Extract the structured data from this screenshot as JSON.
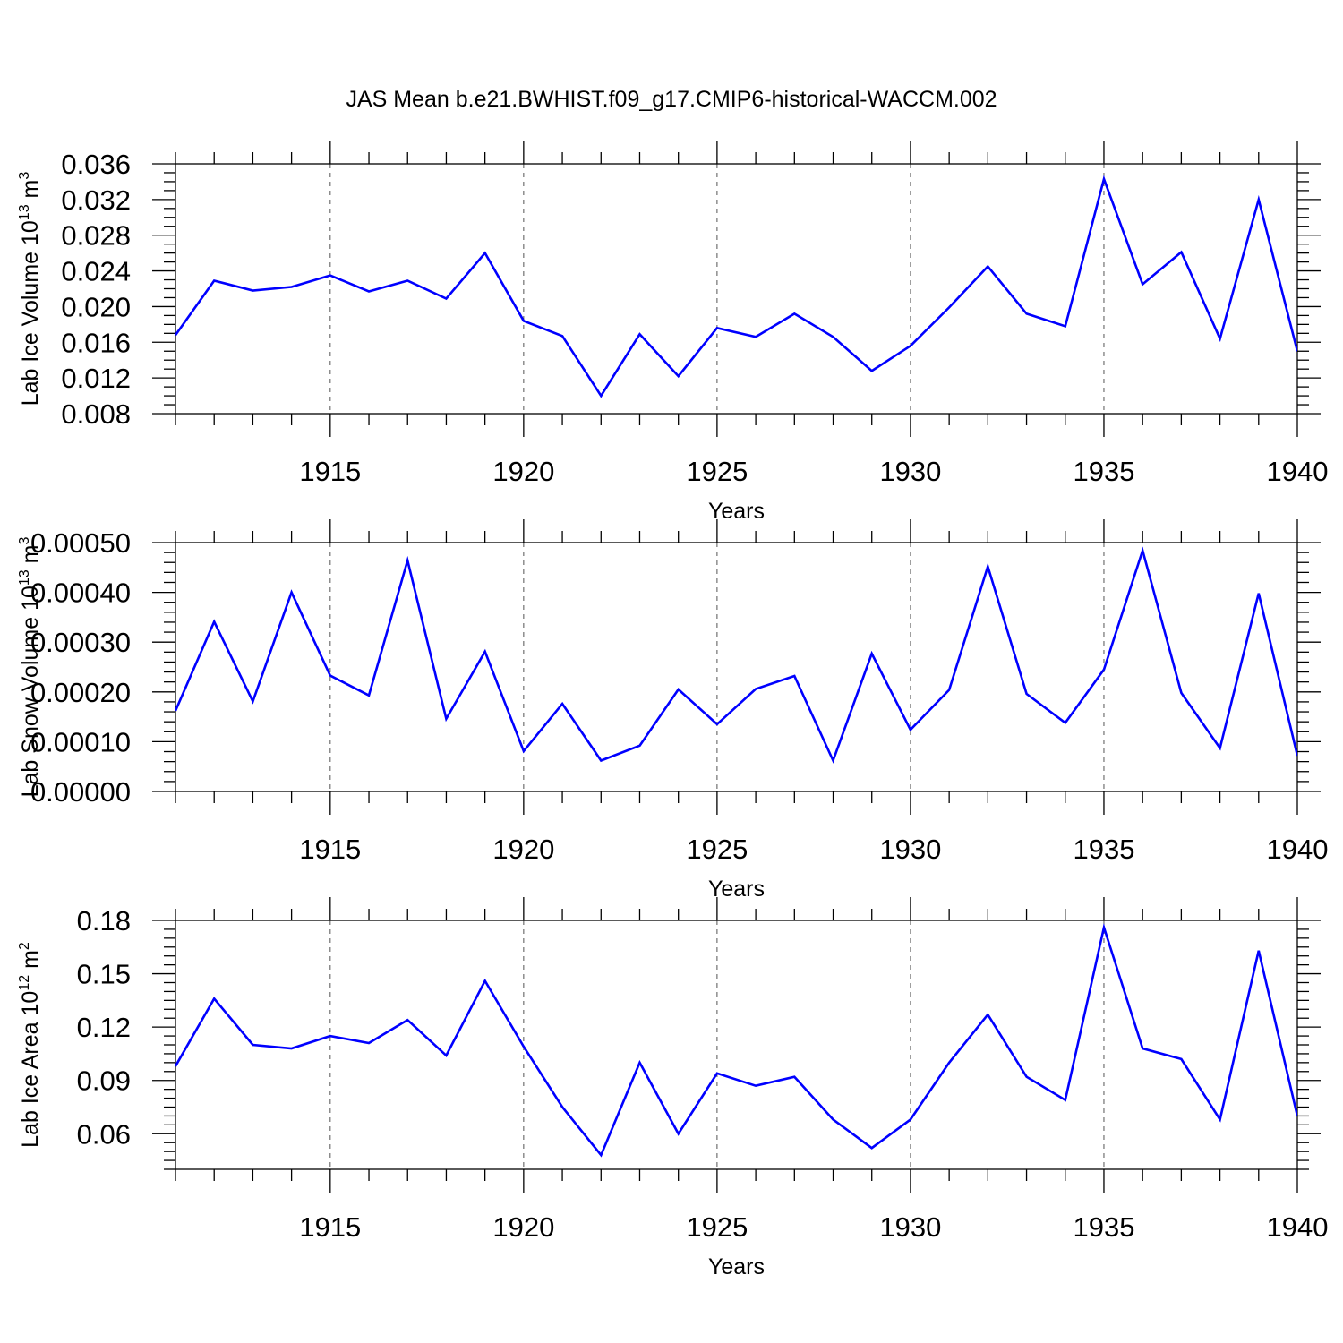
{
  "title": "JAS Mean b.e21.BWHIST.f09_g17.CMIP6-historical-WACCM.002",
  "colors": {
    "line": "#0000ff",
    "axis": "#000000",
    "grid": "#555555"
  },
  "chart_data": [
    {
      "type": "line",
      "ylabel": "Lab Ice Volume 10",
      "ylabel_exp": "13",
      "ylabel_unit": "m",
      "ylabel_unit_exp": "3",
      "xlabel": "Years",
      "xlim": [
        1911,
        1940
      ],
      "ylim": [
        0.008,
        0.036
      ],
      "yticks": [
        "0.008",
        "0.012",
        "0.016",
        "0.020",
        "0.024",
        "0.028",
        "0.032",
        "0.036"
      ],
      "xticks": [
        "1915",
        "1920",
        "1925",
        "1930",
        "1935",
        "1940"
      ],
      "x": [
        1911,
        1912,
        1913,
        1914,
        1915,
        1916,
        1917,
        1918,
        1919,
        1920,
        1921,
        1922,
        1923,
        1924,
        1925,
        1926,
        1927,
        1928,
        1929,
        1930,
        1931,
        1932,
        1933,
        1934,
        1935,
        1936,
        1937,
        1938,
        1939,
        1940
      ],
      "values": [
        0.0168,
        0.0229,
        0.0218,
        0.0222,
        0.0235,
        0.0217,
        0.0229,
        0.0209,
        0.026,
        0.0184,
        0.0167,
        0.01,
        0.0169,
        0.0122,
        0.0176,
        0.0166,
        0.0192,
        0.0166,
        0.0128,
        0.0156,
        0.0199,
        0.0245,
        0.0192,
        0.0178,
        0.0343,
        0.0225,
        0.0261,
        0.0164,
        0.032,
        0.015
      ],
      "grid": "vertical dashed at labelled years"
    },
    {
      "type": "line",
      "ylabel": "Lab Snow Volume 10",
      "ylabel_exp": "13",
      "ylabel_unit": "m",
      "ylabel_unit_exp": "3",
      "xlabel": "Years",
      "xlim": [
        1911,
        1940
      ],
      "ylim": [
        0.0,
        0.0005
      ],
      "yticks": [
        "0.00000",
        "0.00010",
        "0.00020",
        "0.00030",
        "0.00040",
        "0.00050"
      ],
      "xticks": [
        "1915",
        "1920",
        "1925",
        "1930",
        "1935",
        "1940"
      ],
      "x": [
        1911,
        1912,
        1913,
        1914,
        1915,
        1916,
        1917,
        1918,
        1919,
        1920,
        1921,
        1922,
        1923,
        1924,
        1925,
        1926,
        1927,
        1928,
        1929,
        1930,
        1931,
        1932,
        1933,
        1934,
        1935,
        1936,
        1937,
        1938,
        1939,
        1940
      ],
      "values": [
        0.000162,
        0.000341,
        0.000181,
        0.0004,
        0.000233,
        0.000193,
        0.000464,
        0.000146,
        0.000281,
        8.1e-05,
        0.000176,
        6.2e-05,
        9.2e-05,
        0.000205,
        0.000135,
        0.000206,
        0.000232,
        6.2e-05,
        0.000277,
        0.000124,
        0.000204,
        0.000452,
        0.000196,
        0.000138,
        0.000245,
        0.000484,
        0.000198,
        8.7e-05,
        0.000398,
        7.2e-05
      ],
      "grid": "vertical dashed at labelled years"
    },
    {
      "type": "line",
      "ylabel": "Lab Ice Area 10",
      "ylabel_exp": "12",
      "ylabel_unit": "m",
      "ylabel_unit_exp": "2",
      "xlabel": "Years",
      "xlim": [
        1911,
        1940
      ],
      "ylim": [
        0.04,
        0.18
      ],
      "yticks": [
        "0.06",
        "0.09",
        "0.12",
        "0.15",
        "0.18"
      ],
      "xticks": [
        "1915",
        "1920",
        "1925",
        "1930",
        "1935",
        "1940"
      ],
      "x": [
        1911,
        1912,
        1913,
        1914,
        1915,
        1916,
        1917,
        1918,
        1919,
        1920,
        1921,
        1922,
        1923,
        1924,
        1925,
        1926,
        1927,
        1928,
        1929,
        1930,
        1931,
        1932,
        1933,
        1934,
        1935,
        1936,
        1937,
        1938,
        1939,
        1940
      ],
      "values": [
        0.098,
        0.136,
        0.11,
        0.108,
        0.115,
        0.111,
        0.124,
        0.104,
        0.146,
        0.109,
        0.075,
        0.048,
        0.1,
        0.06,
        0.094,
        0.087,
        0.092,
        0.068,
        0.052,
        0.068,
        0.1,
        0.127,
        0.092,
        0.079,
        0.176,
        0.108,
        0.102,
        0.068,
        0.163,
        0.07
      ],
      "grid": "vertical dashed at labelled years"
    }
  ]
}
